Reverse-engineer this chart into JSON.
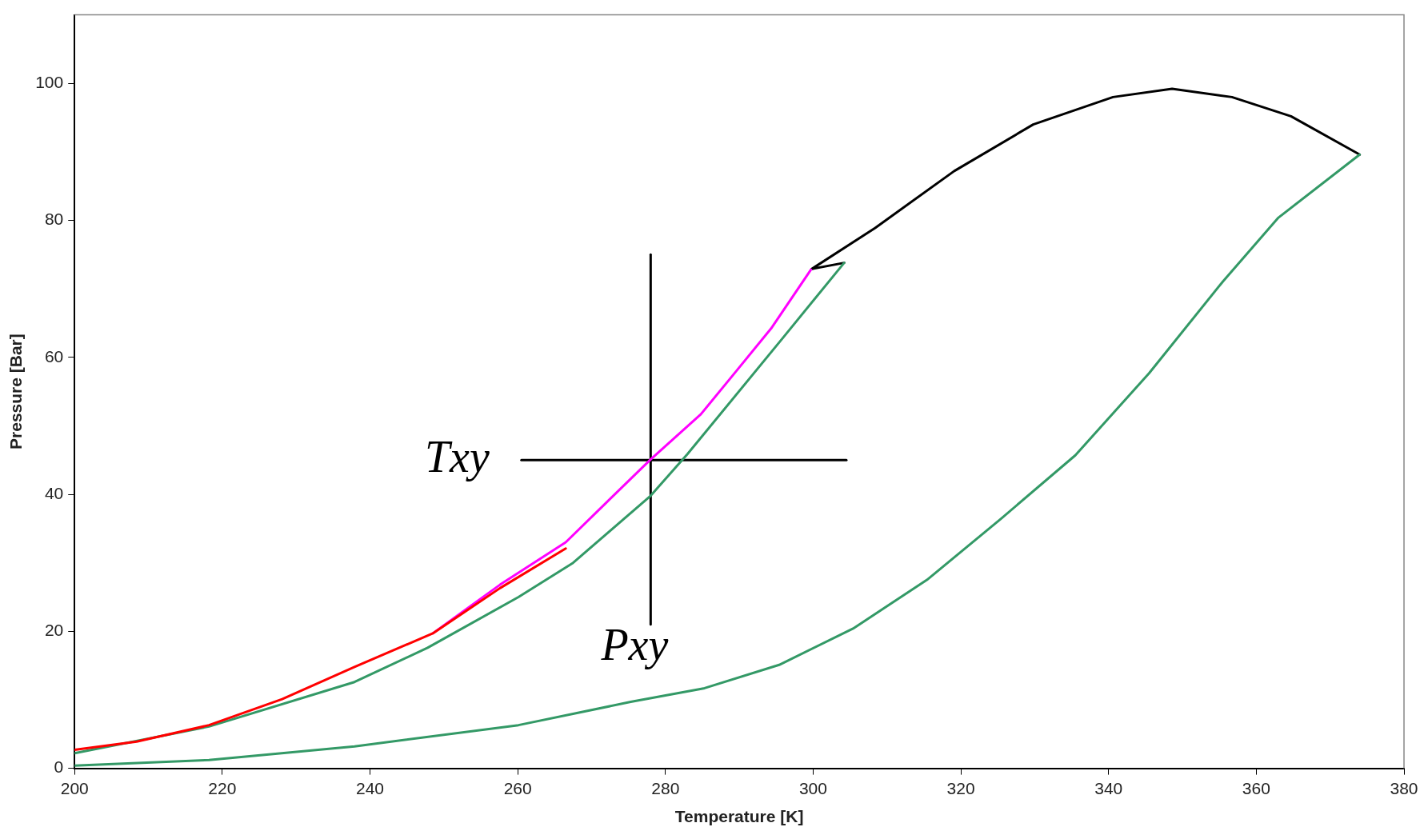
{
  "chart_data": {
    "type": "line",
    "xlabel": "Temperature [K]",
    "ylabel": "Pressure [Bar]",
    "xlim": [
      200,
      380
    ],
    "ylim": [
      0,
      110
    ],
    "xticks": [
      200,
      220,
      240,
      260,
      280,
      300,
      320,
      340,
      360,
      380
    ],
    "yticks": [
      0,
      20,
      40,
      60,
      80,
      100
    ],
    "grid": false,
    "legend": false,
    "marker": "none",
    "line_style": "solid",
    "series": [
      {
        "color": "#ff0000",
        "x": [
          200,
          208.4,
          218.2,
          228.1,
          237.9,
          248.5,
          257.6,
          266.5
        ],
        "values": [
          2.7,
          3.9,
          6.3,
          10.1,
          14.8,
          19.7,
          26.3,
          32.1
        ]
      },
      {
        "color": "#ff00ff",
        "x": [
          248.5,
          257.6,
          266.5,
          272,
          278,
          284.8,
          289.6,
          294.3,
          299.7
        ],
        "values": [
          19.7,
          26.8,
          33.0,
          38.8,
          45.1,
          51.7,
          58.0,
          64.2,
          72.8
        ]
      },
      {
        "color": "#339966",
        "x": [
          200,
          218.2,
          237.9,
          247.8,
          260.1,
          267.5,
          278,
          283,
          295.8,
          304.2
        ],
        "values": [
          2.2,
          6.1,
          12.6,
          17.6,
          25.0,
          30.0,
          39.8,
          45.9,
          62.7,
          73.8
        ]
      },
      {
        "color": "#339966",
        "x": [
          200,
          218.2,
          237.9,
          260.1,
          275.3,
          285.3,
          295.4,
          305.4,
          315.4,
          325.4,
          335.5,
          345.5,
          355.5,
          363,
          374
        ],
        "values": [
          0.4,
          1.2,
          3.2,
          6.3,
          9.7,
          11.7,
          15.1,
          20.4,
          27.5,
          36.4,
          45.7,
          57.7,
          71.1,
          80.4,
          89.6
        ]
      },
      {
        "color": "#000000",
        "x": [
          304.2,
          299.8,
          308.4,
          319.1,
          329.8,
          340.6,
          348.6,
          356.7,
          364.7,
          374
        ],
        "values": [
          73.8,
          72.9,
          78.9,
          87.2,
          94.0,
          98.0,
          99.2,
          98.0,
          95.2,
          89.6
        ]
      },
      {
        "color": "#000000",
        "x": [
          260.5,
          304.5
        ],
        "values": [
          45,
          45
        ]
      },
      {
        "color": "#000000",
        "x": [
          278,
          278
        ],
        "values": [
          21,
          75
        ]
      }
    ],
    "annotations": [
      {
        "text": "Txy",
        "x": 260.5,
        "y": 45
      },
      {
        "text": "Pxy",
        "x": 278,
        "y": 21
      }
    ]
  }
}
